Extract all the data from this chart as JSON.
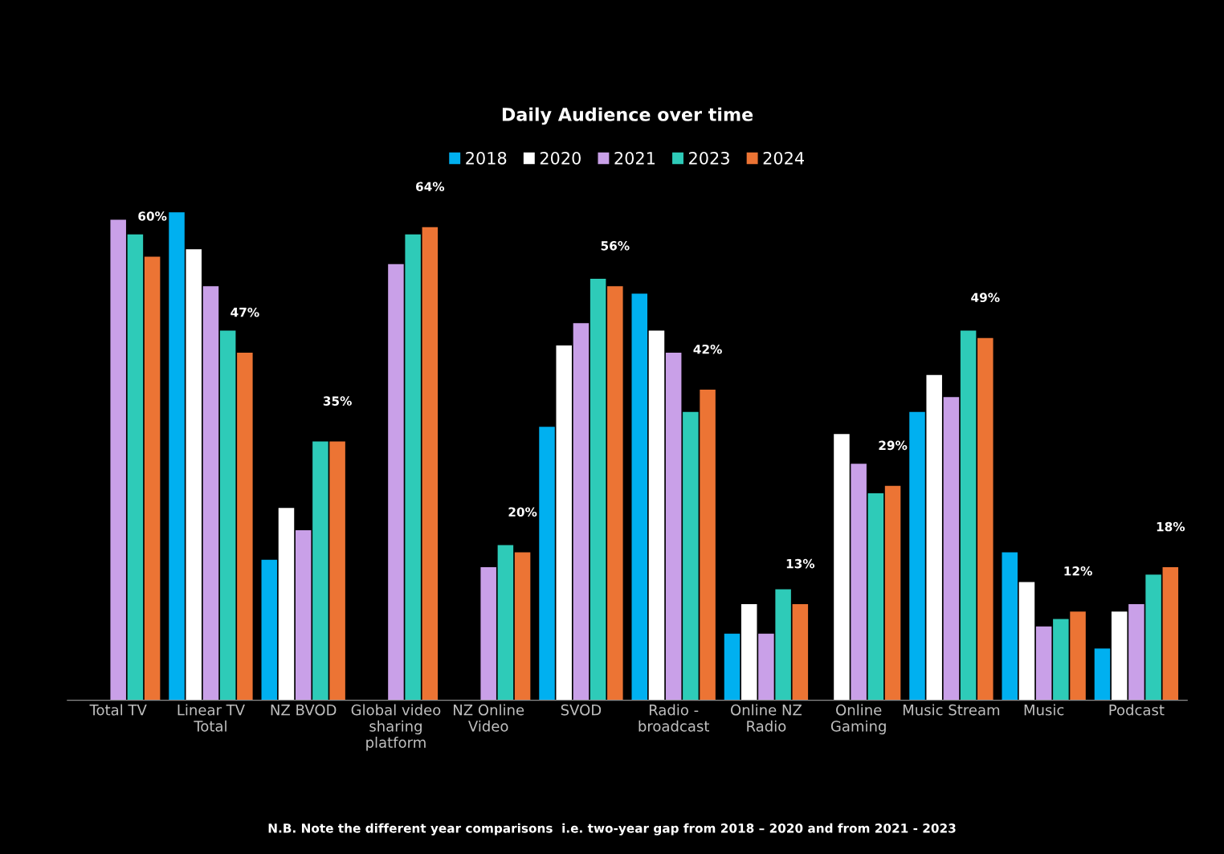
{
  "chart_data": {
    "type": "bar",
    "title": "Daily Audience over time",
    "categories": [
      "Total TV",
      "Linear TV\nTotal",
      "NZ BVOD",
      "Global video\nsharing\nplatform",
      "NZ Online\nVideo",
      "SVOD",
      "Radio -\nbroadcast",
      "Online NZ\nRadio",
      "Online\nGaming",
      "Music Stream",
      "Music",
      "Podcast"
    ],
    "series": [
      {
        "name": "2018",
        "color": "#00b0f0",
        "values": [
          null,
          66,
          19,
          null,
          null,
          37,
          55,
          9,
          null,
          39,
          20,
          7
        ]
      },
      {
        "name": "2020",
        "color": "#ffffff",
        "values": [
          null,
          61,
          26,
          null,
          null,
          48,
          50,
          13,
          36,
          44,
          16,
          12
        ]
      },
      {
        "name": "2021",
        "color": "#c9a0e8",
        "values": [
          65,
          56,
          23,
          59,
          18,
          51,
          47,
          9,
          32,
          41,
          10,
          13
        ]
      },
      {
        "name": "2023",
        "color": "#2ecbb8",
        "values": [
          63,
          50,
          35,
          63,
          21,
          57,
          39,
          15,
          28,
          50,
          11,
          17
        ]
      },
      {
        "name": "2024",
        "color": "#ec7434",
        "values": [
          60,
          47,
          35,
          64,
          20,
          56,
          42,
          13,
          29,
          49,
          12,
          18
        ],
        "value_labels": [
          "60%",
          "47%",
          "35%",
          "64%",
          "20%",
          "56%",
          "42%",
          "13%",
          "29%",
          "49%",
          "12%",
          "18%"
        ]
      }
    ],
    "tick_labels": "x",
    "grid": false,
    "legend": "top",
    "annotations": [
      "N.B. Note the different year comparisons  i.e. two-year gap from 2018 – 2020 and from 2021 - 2023"
    ]
  }
}
